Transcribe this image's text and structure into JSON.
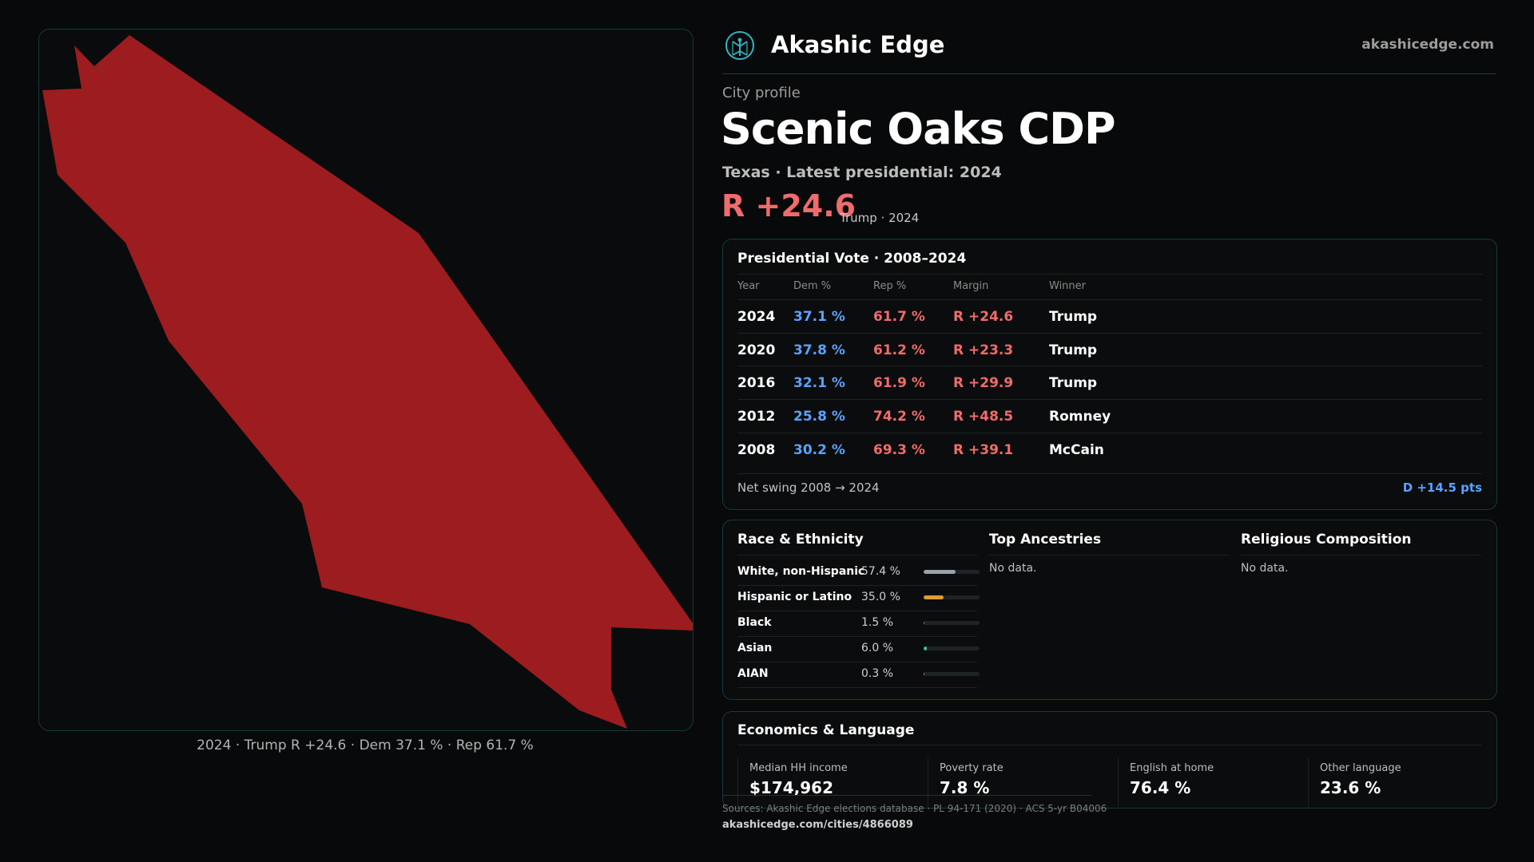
{
  "brand": {
    "name": "Akashic Edge",
    "site": "akashicedge.com",
    "logo_icon": "tree-of-life-logo-icon",
    "accent": "#2fb6c2"
  },
  "map": {
    "shape_color": "#9c1c1f",
    "caption": "2024 · Trump R +24.6 · Dem 37.1 % · Rep 61.7 %"
  },
  "profile": {
    "kicker": "City profile",
    "title": "Scenic Oaks CDP",
    "subtitle": "Texas · Latest presidential: 2024",
    "margin": "R +24.6",
    "margin_sub": "Trump · 2024"
  },
  "presidential": {
    "title": "Presidential Vote · 2008–2024",
    "headers": [
      "Year",
      "Dem %",
      "Rep %",
      "Margin",
      "Winner"
    ],
    "rows": [
      {
        "year": "2024",
        "dem": "37.1 %",
        "rep": "61.7 %",
        "margin": "R +24.6",
        "winner": "Trump"
      },
      {
        "year": "2020",
        "dem": "37.8 %",
        "rep": "61.2 %",
        "margin": "R +23.3",
        "winner": "Trump"
      },
      {
        "year": "2016",
        "dem": "32.1 %",
        "rep": "61.9 %",
        "margin": "R +29.9",
        "winner": "Trump"
      },
      {
        "year": "2012",
        "dem": "25.8 %",
        "rep": "74.2 %",
        "margin": "R +48.5",
        "winner": "Romney"
      },
      {
        "year": "2008",
        "dem": "30.2 %",
        "rep": "69.3 %",
        "margin": "R +39.1",
        "winner": "McCain"
      }
    ],
    "net_swing_label": "Net swing 2008 → 2024",
    "net_swing_value": "D +14.5 pts",
    "colors": {
      "dem": "#5aa2ff",
      "rep": "#f06b6b"
    }
  },
  "race": {
    "title": "Race & Ethnicity",
    "rows": [
      {
        "label": "White, non-Hispanic",
        "pct": "57.4 %",
        "value": 57.4,
        "color": "#9aa3ad"
      },
      {
        "label": "Hispanic or Latino",
        "pct": "35.0 %",
        "value": 35.0,
        "color": "#e09a2d"
      },
      {
        "label": "Black",
        "pct": "1.5 %",
        "value": 1.5,
        "color": "#5a7bd8"
      },
      {
        "label": "Asian",
        "pct": "6.0 %",
        "value": 6.0,
        "color": "#3fc48c"
      },
      {
        "label": "AIAN",
        "pct": "0.3 %",
        "value": 0.3,
        "color": "#e07a3a"
      }
    ]
  },
  "ancestries": {
    "title": "Top Ancestries",
    "empty": "No data."
  },
  "religion": {
    "title": "Religious Composition",
    "empty": "No data."
  },
  "economics": {
    "title": "Economics & Language",
    "stats": [
      {
        "label": "Median HH income",
        "value": "$174,962"
      },
      {
        "label": "Poverty rate",
        "value": "7.8 %"
      },
      {
        "label": "English at home",
        "value": "76.4 %"
      },
      {
        "label": "Other language",
        "value": "23.6 %"
      }
    ]
  },
  "footer": {
    "sources": "Sources: Akashic Edge elections database · PL 94-171 (2020) · ACS 5-yr B04006",
    "permalink": "akashicedge.com/cities/4866089"
  }
}
